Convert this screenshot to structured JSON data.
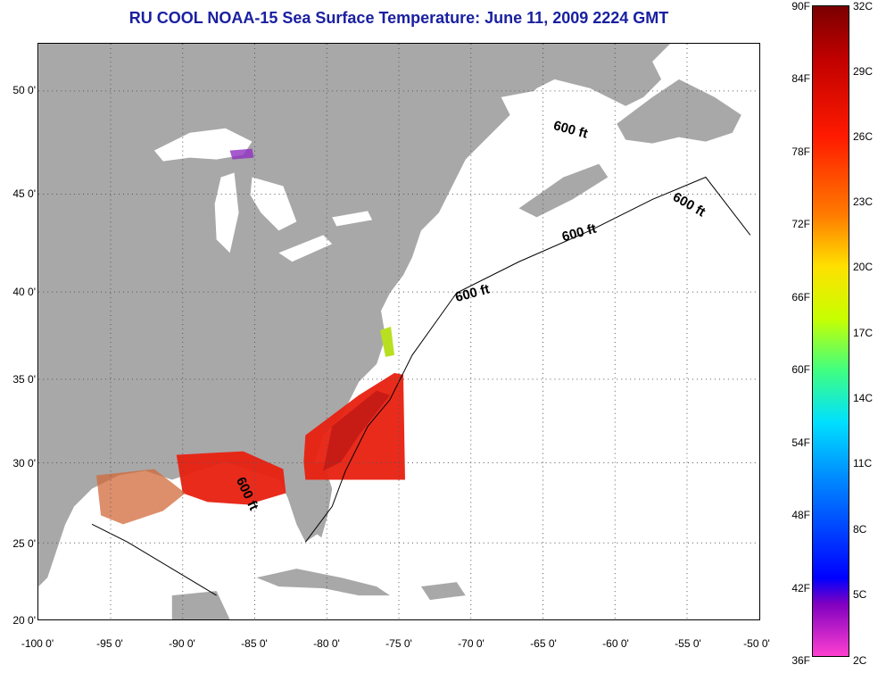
{
  "title": "RU COOL  NOAA-15  Sea Surface Temperature:  June 11, 2009 2224 GMT",
  "contour_label": "600 ft",
  "lat_labels": [
    "50 0'",
    "45 0'",
    "40 0'",
    "35 0'",
    "30 0'",
    "25 0'",
    "20 0'"
  ],
  "lon_labels": [
    "-100 0'",
    "-95 0'",
    "-90 0'",
    "-85 0'",
    "-80 0'",
    "-75 0'",
    "-70 0'",
    "-65 0'",
    "-60 0'",
    "-55 0'",
    "-50 0'"
  ],
  "colorbar": {
    "fahrenheit": [
      "90F",
      "84F",
      "78F",
      "72F",
      "66F",
      "60F",
      "54F",
      "48F",
      "42F",
      "36F"
    ],
    "celsius": [
      "32C",
      "29C",
      "26C",
      "23C",
      "20C",
      "17C",
      "14C",
      "11C",
      "8C",
      "5C",
      "2C"
    ]
  },
  "colors": {
    "land": "#a8a8a8",
    "ocean": "#ffffff",
    "title": "#1a20a0",
    "warm_water": "#e82010"
  }
}
